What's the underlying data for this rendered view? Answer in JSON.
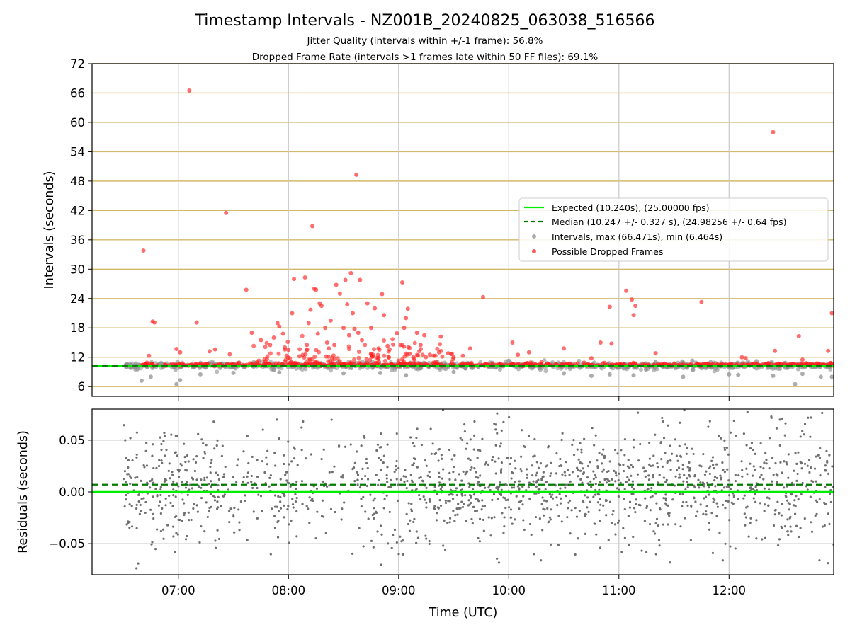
{
  "title": "Timestamp Intervals - NZ001B_20240825_063038_516566",
  "subtitle_jitter": "Jitter Quality (intervals within +/-1 frame): 56.8%",
  "subtitle_dropped": "Dropped Frame Rate (intervals >1 frames late within 50 FF files): 69.1%",
  "colors": {
    "expected": "#00ee00",
    "median": "#007a00",
    "intervals": "#909090",
    "dropped": "#ff2020",
    "residuals": "#707070",
    "hgrid_top": "#d2b96a",
    "grid": "#c8c8c8"
  },
  "chart_data": [
    {
      "type": "scatter",
      "panel": "intervals",
      "ylabel": "Intervals (seconds)",
      "xlabel": "",
      "xlim": [
        "06:13",
        "12:57"
      ],
      "ylim": [
        4,
        72
      ],
      "yticks": [
        "6",
        "12",
        "18",
        "24",
        "30",
        "36",
        "42",
        "48",
        "54",
        "60",
        "66",
        "72"
      ],
      "xticks": [
        "07:00",
        "08:00",
        "09:00",
        "10:00",
        "11:00",
        "12:00"
      ],
      "grid": "on",
      "legend_position": "center-right",
      "expected_interval": 10.24,
      "median_interval": 10.247,
      "legend": [
        "Expected (10.240s), (25.00000 fps)",
        "Median (10.247 +/- 0.327 s), (24.98256 +/- 0.64 fps)",
        "Intervals, max (66.471s), min (6.464s)",
        "Possible Dropped Frames"
      ],
      "series": [
        {
          "name": "Intervals, max (66.471s), min (6.464s)",
          "baseline_range": [
            "06:30",
            "12:56"
          ],
          "points": [
            {
              "x": "06:40",
              "y": 7.2
            },
            {
              "x": "06:45",
              "y": 8.0
            },
            {
              "x": "06:59",
              "y": 6.5
            },
            {
              "x": "07:01",
              "y": 7.3
            },
            {
              "x": "07:12",
              "y": 8.5
            },
            {
              "x": "07:30",
              "y": 8.8
            },
            {
              "x": "07:55",
              "y": 8.9
            },
            {
              "x": "08:30",
              "y": 8.7
            },
            {
              "x": "08:50",
              "y": 8.8
            },
            {
              "x": "09:04",
              "y": 8.3
            },
            {
              "x": "09:30",
              "y": 9.0
            },
            {
              "x": "10:00",
              "y": 11.3
            },
            {
              "x": "10:30",
              "y": 8.7
            },
            {
              "x": "10:45",
              "y": 8.2
            },
            {
              "x": "10:55",
              "y": 8.5
            },
            {
              "x": "11:08",
              "y": 8.3
            },
            {
              "x": "11:20",
              "y": 11.0
            },
            {
              "x": "11:35",
              "y": 8.0
            },
            {
              "x": "11:40",
              "y": 11.3
            },
            {
              "x": "11:50",
              "y": 11.0
            },
            {
              "x": "12:00",
              "y": 8.5
            },
            {
              "x": "12:05",
              "y": 8.4
            },
            {
              "x": "12:15",
              "y": 11.2
            },
            {
              "x": "12:24",
              "y": 8.2
            },
            {
              "x": "12:36",
              "y": 6.5
            },
            {
              "x": "12:40",
              "y": 8.6
            },
            {
              "x": "12:50",
              "y": 8.0
            },
            {
              "x": "12:56",
              "y": 8.0
            }
          ]
        },
        {
          "name": "Possible Dropped Frames",
          "baseline_range": [
            "06:40",
            "12:57"
          ],
          "points": [
            {
              "x": "06:41",
              "y": 33.8
            },
            {
              "x": "06:44",
              "y": 12.3
            },
            {
              "x": "06:46",
              "y": 19.3
            },
            {
              "x": "06:47",
              "y": 19.1
            },
            {
              "x": "06:59",
              "y": 13.7
            },
            {
              "x": "07:01",
              "y": 13.0
            },
            {
              "x": "07:06",
              "y": 66.5
            },
            {
              "x": "07:10",
              "y": 19.1
            },
            {
              "x": "07:17",
              "y": 13.2
            },
            {
              "x": "07:20",
              "y": 13.6
            },
            {
              "x": "07:26",
              "y": 41.5
            },
            {
              "x": "07:28",
              "y": 12.6
            },
            {
              "x": "07:37",
              "y": 25.8
            },
            {
              "x": "07:40",
              "y": 17.0
            },
            {
              "x": "07:45",
              "y": 15.5
            },
            {
              "x": "07:50",
              "y": 14.5
            },
            {
              "x": "07:52",
              "y": 16.0
            },
            {
              "x": "07:54",
              "y": 19.0
            },
            {
              "x": "07:55",
              "y": 18.3
            },
            {
              "x": "07:57",
              "y": 16.8
            },
            {
              "x": "07:58",
              "y": 14.0
            },
            {
              "x": "07:59",
              "y": 12.3
            },
            {
              "x": "08:00",
              "y": 13.5
            },
            {
              "x": "08:02",
              "y": 21.0
            },
            {
              "x": "08:03",
              "y": 28.0
            },
            {
              "x": "08:06",
              "y": 12.2
            },
            {
              "x": "08:09",
              "y": 28.3
            },
            {
              "x": "08:10",
              "y": 14.5
            },
            {
              "x": "08:11",
              "y": 19.0
            },
            {
              "x": "08:12",
              "y": 21.7
            },
            {
              "x": "08:13",
              "y": 38.8
            },
            {
              "x": "08:14",
              "y": 26.0
            },
            {
              "x": "08:15",
              "y": 25.8
            },
            {
              "x": "08:16",
              "y": 16.8
            },
            {
              "x": "08:17",
              "y": 23.0
            },
            {
              "x": "08:18",
              "y": 22.5
            },
            {
              "x": "08:20",
              "y": 18.0
            },
            {
              "x": "08:21",
              "y": 15.0
            },
            {
              "x": "08:22",
              "y": 13.8
            },
            {
              "x": "08:23",
              "y": 19.5
            },
            {
              "x": "08:25",
              "y": 14.5
            },
            {
              "x": "08:26",
              "y": 26.8
            },
            {
              "x": "08:28",
              "y": 25.0
            },
            {
              "x": "08:30",
              "y": 18.0
            },
            {
              "x": "08:31",
              "y": 27.8
            },
            {
              "x": "08:32",
              "y": 22.8
            },
            {
              "x": "08:33",
              "y": 16.5
            },
            {
              "x": "08:34",
              "y": 29.2
            },
            {
              "x": "08:35",
              "y": 21.0
            },
            {
              "x": "08:36",
              "y": 17.8
            },
            {
              "x": "08:37",
              "y": 49.3
            },
            {
              "x": "08:38",
              "y": 17.0
            },
            {
              "x": "08:39",
              "y": 27.8
            },
            {
              "x": "08:40",
              "y": 15.5
            },
            {
              "x": "08:43",
              "y": 23.0
            },
            {
              "x": "08:45",
              "y": 18.0
            },
            {
              "x": "08:46",
              "y": 12.5
            },
            {
              "x": "08:47",
              "y": 22.0
            },
            {
              "x": "08:49",
              "y": 13.8
            },
            {
              "x": "08:51",
              "y": 24.9
            },
            {
              "x": "08:52",
              "y": 20.6
            },
            {
              "x": "08:54",
              "y": 14.3
            },
            {
              "x": "08:57",
              "y": 14.6
            },
            {
              "x": "08:59",
              "y": 16.9
            },
            {
              "x": "09:01",
              "y": 14.5
            },
            {
              "x": "09:02",
              "y": 27.3
            },
            {
              "x": "09:03",
              "y": 18.0
            },
            {
              "x": "09:04",
              "y": 20.0
            },
            {
              "x": "09:05",
              "y": 21.9
            },
            {
              "x": "09:06",
              "y": 12.7
            },
            {
              "x": "09:08",
              "y": 12.0
            },
            {
              "x": "09:10",
              "y": 17.0
            },
            {
              "x": "09:12",
              "y": 14.5
            },
            {
              "x": "09:14",
              "y": 16.5
            },
            {
              "x": "09:17",
              "y": 12.5
            },
            {
              "x": "09:19",
              "y": 12.3
            },
            {
              "x": "09:22",
              "y": 13.0
            },
            {
              "x": "09:23",
              "y": 16.2
            },
            {
              "x": "09:27",
              "y": 12.8
            },
            {
              "x": "09:30",
              "y": 12.0
            },
            {
              "x": "09:35",
              "y": 12.3
            },
            {
              "x": "09:39",
              "y": 13.8
            },
            {
              "x": "09:46",
              "y": 24.3
            },
            {
              "x": "10:02",
              "y": 15.0
            },
            {
              "x": "10:05",
              "y": 12.5
            },
            {
              "x": "10:11",
              "y": 13.0
            },
            {
              "x": "10:30",
              "y": 13.8
            },
            {
              "x": "10:45",
              "y": 11.8
            },
            {
              "x": "10:50",
              "y": 15.0
            },
            {
              "x": "10:55",
              "y": 22.3
            },
            {
              "x": "10:56",
              "y": 14.8
            },
            {
              "x": "11:04",
              "y": 25.6
            },
            {
              "x": "11:07",
              "y": 23.8
            },
            {
              "x": "11:08",
              "y": 20.6
            },
            {
              "x": "11:09",
              "y": 22.5
            },
            {
              "x": "11:20",
              "y": 12.8
            },
            {
              "x": "11:45",
              "y": 23.3
            },
            {
              "x": "12:07",
              "y": 12.0
            },
            {
              "x": "12:09",
              "y": 11.8
            },
            {
              "x": "12:24",
              "y": 58.0
            },
            {
              "x": "12:25",
              "y": 13.3
            },
            {
              "x": "12:38",
              "y": 16.3
            },
            {
              "x": "12:40",
              "y": 11.5
            },
            {
              "x": "12:54",
              "y": 13.3
            },
            {
              "x": "12:56",
              "y": 21.0
            }
          ]
        }
      ]
    },
    {
      "type": "scatter",
      "panel": "residuals",
      "ylabel": "Residuals (seconds)",
      "xlabel": "Time (UTC)",
      "xlim": [
        "06:13",
        "12:57"
      ],
      "ylim": [
        -0.08,
        0.08
      ],
      "yticks": [
        "−0.05",
        "0.00",
        "0.05"
      ],
      "xticks": [
        "07:00",
        "08:00",
        "09:00",
        "10:00",
        "11:00",
        "12:00"
      ],
      "grid": "on",
      "expected_residual": 0.0,
      "median_residual": 0.007,
      "series": [
        {
          "name": "",
          "x_range": [
            "06:30",
            "12:57"
          ],
          "y_range": [
            -0.08,
            0.08
          ],
          "spread_sd": 0.028,
          "sparse_gaps": [
            [
              "07:25",
              "07:52"
            ],
            [
              "08:05",
              "08:45"
            ]
          ]
        }
      ]
    }
  ]
}
